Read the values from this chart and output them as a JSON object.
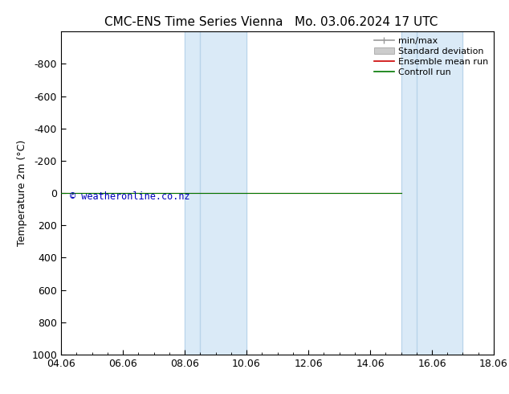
{
  "title_left": "CMC-ENS Time Series Vienna",
  "title_right": "Mo. 03.06.2024 17 UTC",
  "ylabel": "Temperature 2m (°C)",
  "xlim": [
    0,
    14
  ],
  "ylim_top": -1000,
  "ylim_bottom": 1000,
  "yticks": [
    -800,
    -600,
    -400,
    -200,
    0,
    200,
    400,
    600,
    800,
    1000
  ],
  "xticks": [
    0,
    2,
    4,
    6,
    8,
    10,
    12,
    14
  ],
  "xtick_labels": [
    "04.06",
    "06.06",
    "08.06",
    "10.06",
    "12.06",
    "14.06",
    "16.06",
    "18.06"
  ],
  "shaded_regions": [
    {
      "x_start": 4,
      "x_end": 4.5,
      "color": "#daeaf7"
    },
    {
      "x_start": 4.5,
      "x_end": 6,
      "color": "#daeaf7"
    },
    {
      "x_start": 11,
      "x_end": 11.5,
      "color": "#daeaf7"
    },
    {
      "x_start": 11.5,
      "x_end": 13,
      "color": "#daeaf7"
    }
  ],
  "shade_dividers": [
    4.5,
    11.5
  ],
  "shade_borders": [
    4,
    6,
    11,
    13
  ],
  "shaded_color": "#daeaf7",
  "divider_color": "#b8d4ea",
  "border_color": "#b8d4ea",
  "green_line_x": [
    0,
    11
  ],
  "green_line_y": [
    0,
    0
  ],
  "green_line_color": "#007700",
  "red_line_x": [
    0,
    11
  ],
  "red_line_y": [
    0,
    0
  ],
  "red_line_color": "#cc0000",
  "watermark_text": "© weatheronline.co.nz",
  "watermark_color": "#0000bb",
  "background_color": "#ffffff",
  "font_size": 9,
  "title_font_size": 11,
  "legend_fontsize": 8
}
